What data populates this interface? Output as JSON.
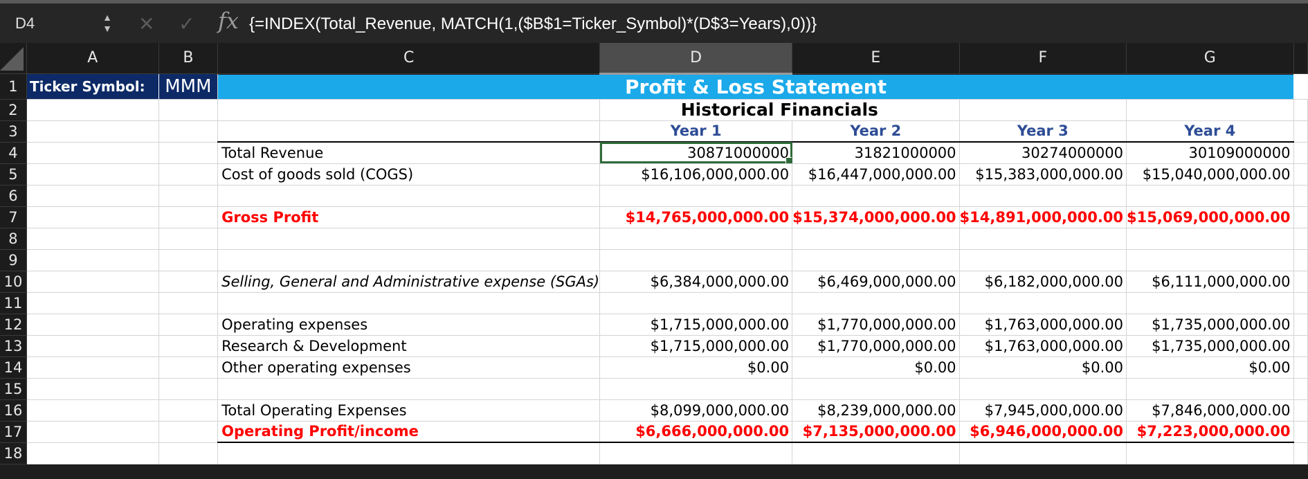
{
  "formula_bar": {
    "name_box": "D4",
    "formula": "{=INDEX(Total_Revenue, MATCH(1,($B$1=Ticker_Symbol)*(D$3=Years),0))}",
    "fx_label": "fx",
    "cancel_glyph": "✕",
    "confirm_glyph": "✓"
  },
  "columns": [
    "A",
    "B",
    "C",
    "D",
    "E",
    "F",
    "G"
  ],
  "selected_cell": "D4",
  "rows": [
    "1",
    "2",
    "3",
    "4",
    "5",
    "6",
    "7",
    "8",
    "9",
    "10",
    "11",
    "12",
    "13",
    "14",
    "15",
    "16",
    "17",
    "18"
  ],
  "sheet": {
    "ticker_label": "Ticker Symbol:",
    "ticker_value": "MMM",
    "title": "Profit & Loss Statement",
    "subtitle": "Historical Financials",
    "years": [
      "Year 1",
      "Year 2",
      "Year 3",
      "Year 4"
    ],
    "lines": {
      "total_revenue": {
        "label": "Total Revenue",
        "values": [
          "30871000000",
          "31821000000",
          "30274000000",
          "30109000000"
        ]
      },
      "cogs": {
        "label": "Cost of goods sold (COGS)",
        "values": [
          "$16,106,000,000.00",
          "$16,447,000,000.00",
          "$15,383,000,000.00",
          "$15,040,000,000.00"
        ]
      },
      "gross_profit": {
        "label": "Gross Profit",
        "values": [
          "$14,765,000,000.00",
          "$15,374,000,000.00",
          "$14,891,000,000.00",
          "$15,069,000,000.00"
        ]
      },
      "sga": {
        "label": "Selling, General and Administrative expense (SGAs)",
        "values": [
          "$6,384,000,000.00",
          "$6,469,000,000.00",
          "$6,182,000,000.00",
          "$6,111,000,000.00"
        ]
      },
      "opex": {
        "label": "Operating expenses",
        "values": [
          "$1,715,000,000.00",
          "$1,770,000,000.00",
          "$1,763,000,000.00",
          "$1,735,000,000.00"
        ]
      },
      "rnd": {
        "label": "Research & Development",
        "values": [
          "$1,715,000,000.00",
          "$1,770,000,000.00",
          "$1,763,000,000.00",
          "$1,735,000,000.00"
        ]
      },
      "other_opex": {
        "label": "Other operating expenses",
        "values": [
          "$0.00",
          "$0.00",
          "$0.00",
          "$0.00"
        ]
      },
      "total_opex": {
        "label": "Total Operating Expenses",
        "values": [
          "$8,099,000,000.00",
          "$8,239,000,000.00",
          "$7,945,000,000.00",
          "$7,846,000,000.00"
        ]
      },
      "operating_profit": {
        "label": "Operating Profit/income",
        "values": [
          "$6,666,000,000.00",
          "$7,135,000,000.00",
          "$6,946,000,000.00",
          "$7,223,000,000.00"
        ]
      }
    }
  },
  "colors": {
    "ticker_fill": "#0d2a66",
    "title_fill": "#1ba9ea",
    "year_text": "#2e4d96",
    "highlight_red": "#ff0000",
    "selection": "#2f6b3a"
  }
}
